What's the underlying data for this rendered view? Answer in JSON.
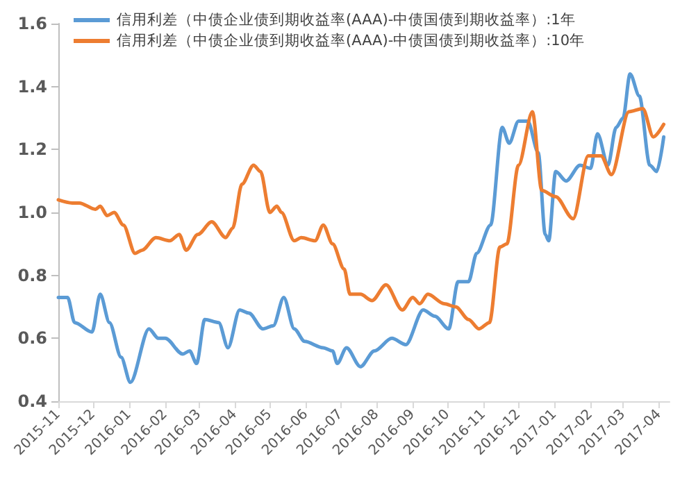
{
  "chart_data": {
    "type": "line",
    "xlim": [
      "2015-11-01",
      "2017-04-10"
    ],
    "xticks": [
      "2015-11",
      "2015-12",
      "2016-01",
      "2016-02",
      "2016-03",
      "2016-04",
      "2016-05",
      "2016-06",
      "2016-07",
      "2016-08",
      "2016-09",
      "2016-10",
      "2016-11",
      "2016-12",
      "2017-01",
      "2017-02",
      "2017-03",
      "2017-04"
    ],
    "ylim": [
      0.4,
      1.6
    ],
    "yticks": [
      0.4,
      0.6,
      0.8,
      {
        "value": 1,
        "label": "1.0"
      },
      1.2,
      1.4,
      1.6
    ],
    "grid": false,
    "legend": "top left",
    "marker": "none",
    "line_style": "solid",
    "series": [
      {
        "name": "信用利差（中债企业债到期收益率(AAA)-中债国债到期收益率）:1年",
        "color": "#5b9bd5",
        "x": [
          "2015-11-01",
          "2015-11-09",
          "2015-11-15",
          "2015-11-30",
          "2015-12-07",
          "2015-12-15",
          "2015-12-25",
          "2016-01-02",
          "2016-01-18",
          "2016-01-26",
          "2016-02-01",
          "2016-02-16",
          "2016-02-22",
          "2016-02-28",
          "2016-03-06",
          "2016-03-18",
          "2016-03-26",
          "2016-04-05",
          "2016-04-13",
          "2016-04-25",
          "2016-05-04",
          "2016-05-13",
          "2016-05-22",
          "2016-05-31",
          "2016-06-16",
          "2016-06-24",
          "2016-06-28",
          "2016-07-06",
          "2016-07-18",
          "2016-07-30",
          "2016-08-14",
          "2016-08-26",
          "2016-09-10",
          "2016-09-20",
          "2016-10-02",
          "2016-10-10",
          "2016-10-19",
          "2016-10-26",
          "2016-11-07",
          "2016-11-17",
          "2016-11-23",
          "2016-12-01",
          "2016-12-09",
          "2016-12-18",
          "2016-12-24",
          "2016-12-27",
          "2017-01-02",
          "2017-01-11",
          "2017-01-23",
          "2017-02-01",
          "2017-02-07",
          "2017-02-16",
          "2017-02-23",
          "2017-03-01",
          "2017-03-07",
          "2017-03-15",
          "2017-03-24",
          "2017-03-30",
          "2017-04-05"
        ],
        "values": [
          0.73,
          0.73,
          0.65,
          0.62,
          0.74,
          0.65,
          0.54,
          0.46,
          0.63,
          0.6,
          0.6,
          0.55,
          0.56,
          0.52,
          0.66,
          0.65,
          0.57,
          0.69,
          0.68,
          0.63,
          0.64,
          0.73,
          0.63,
          0.59,
          0.57,
          0.56,
          0.52,
          0.57,
          0.51,
          0.56,
          0.6,
          0.58,
          0.69,
          0.67,
          0.63,
          0.78,
          0.78,
          0.87,
          0.96,
          1.27,
          1.22,
          1.29,
          1.29,
          1.19,
          0.93,
          0.91,
          1.13,
          1.1,
          1.15,
          1.14,
          1.25,
          1.15,
          1.27,
          1.3,
          1.44,
          1.37,
          1.15,
          1.13,
          1.24
        ]
      },
      {
        "name": "信用利差（中债企业债到期收益率(AAA)-中债国债到期收益率）:10年",
        "color": "#ed7d31",
        "x": [
          "2015-11-01",
          "2015-11-13",
          "2015-11-19",
          "2015-12-03",
          "2015-12-07",
          "2015-12-13",
          "2015-12-19",
          "2015-12-27",
          "2016-01-06",
          "2016-01-12",
          "2016-01-24",
          "2016-02-05",
          "2016-02-13",
          "2016-02-19",
          "2016-02-29",
          "2016-03-12",
          "2016-03-24",
          "2016-03-30",
          "2016-04-07",
          "2016-04-17",
          "2016-04-23",
          "2016-05-01",
          "2016-05-07",
          "2016-05-11",
          "2016-05-22",
          "2016-05-28",
          "2016-06-09",
          "2016-06-16",
          "2016-06-24",
          "2016-07-04",
          "2016-07-09",
          "2016-07-18",
          "2016-07-28",
          "2016-08-09",
          "2016-08-23",
          "2016-09-01",
          "2016-09-07",
          "2016-09-14",
          "2016-09-28",
          "2016-10-08",
          "2016-10-19",
          "2016-10-28",
          "2016-11-06",
          "2016-11-15",
          "2016-11-21",
          "2016-12-01",
          "2016-12-13",
          "2016-12-21",
          "2017-01-02",
          "2017-01-17",
          "2017-01-30",
          "2017-02-10",
          "2017-02-19",
          "2017-03-06",
          "2017-03-18",
          "2017-03-27",
          "2017-04-05"
        ],
        "values": [
          1.04,
          1.03,
          1.03,
          1.01,
          1.02,
          0.99,
          1.0,
          0.96,
          0.87,
          0.88,
          0.92,
          0.91,
          0.93,
          0.88,
          0.93,
          0.97,
          0.92,
          0.95,
          1.09,
          1.15,
          1.13,
          1.0,
          1.02,
          1.0,
          0.91,
          0.92,
          0.91,
          0.96,
          0.9,
          0.82,
          0.74,
          0.74,
          0.72,
          0.77,
          0.69,
          0.73,
          0.71,
          0.74,
          0.71,
          0.7,
          0.66,
          0.63,
          0.65,
          0.89,
          0.9,
          1.15,
          1.32,
          1.07,
          1.05,
          0.98,
          1.18,
          1.18,
          1.12,
          1.32,
          1.33,
          1.24,
          1.28
        ]
      }
    ]
  }
}
